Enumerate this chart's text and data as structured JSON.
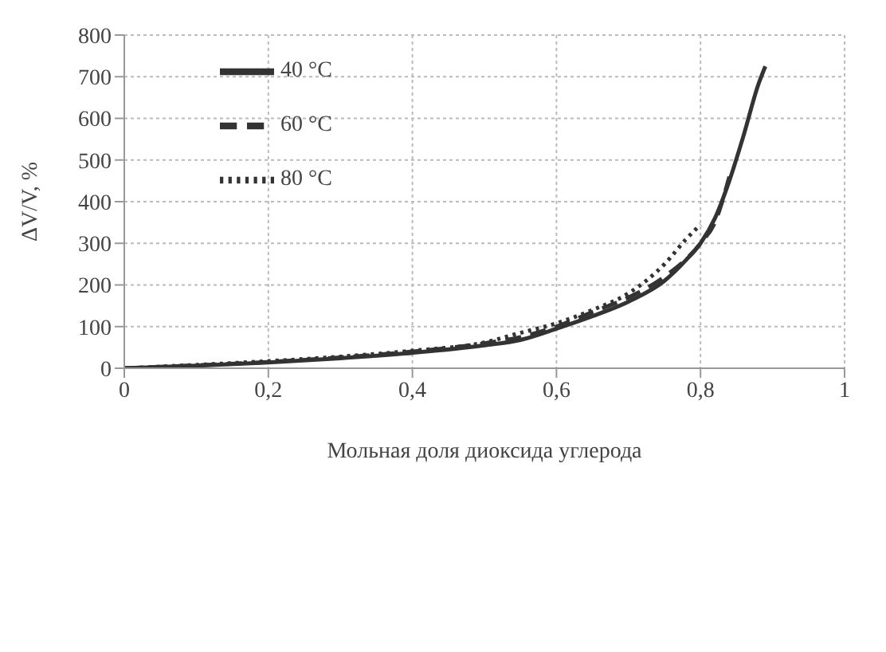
{
  "chart_data": {
    "type": "line",
    "xlabel": "Мольная доля диоксида углерода",
    "ylabel": "ΔV/V, %",
    "xlim": [
      0,
      1
    ],
    "xticks": [
      0,
      {
        "value": 0.2,
        "label": "0,2"
      },
      {
        "value": 0.4,
        "label": "0,4"
      },
      {
        "value": 0.6,
        "label": "0,6"
      },
      {
        "value": 0.8,
        "label": "0,8"
      },
      1
    ],
    "ylim": [
      0,
      800
    ],
    "yticks": [
      0,
      100,
      200,
      300,
      400,
      500,
      600,
      700,
      800
    ],
    "grid": true,
    "legend": "top left",
    "marker": "none",
    "series": [
      {
        "name": "40 °C",
        "color": "#333333",
        "line_style": "solid",
        "x": [
          0,
          0.1,
          0.2,
          0.3,
          0.4,
          0.5,
          0.55,
          0.6,
          0.65,
          0.7,
          0.75,
          0.78,
          0.8,
          0.82,
          0.84,
          0.86,
          0.88,
          0.89
        ],
        "values": [
          0,
          6,
          14,
          24,
          37,
          55,
          68,
          95,
          125,
          160,
          210,
          260,
          300,
          360,
          450,
          560,
          680,
          725
        ]
      },
      {
        "name": "60 °C",
        "color": "#333333",
        "line_style": "dashed",
        "x": [
          0,
          0.1,
          0.2,
          0.3,
          0.4,
          0.5,
          0.55,
          0.6,
          0.65,
          0.7,
          0.75,
          0.8,
          0.82,
          0.84
        ],
        "values": [
          0,
          7,
          15,
          26,
          40,
          60,
          75,
          100,
          135,
          170,
          220,
          300,
          350,
          460
        ]
      },
      {
        "name": "80 °C",
        "color": "#333333",
        "line_style": "dotted",
        "x": [
          0,
          0.1,
          0.2,
          0.3,
          0.4,
          0.5,
          0.55,
          0.6,
          0.65,
          0.7,
          0.75,
          0.78,
          0.8
        ],
        "values": [
          0,
          8,
          17,
          28,
          42,
          62,
          85,
          108,
          140,
          180,
          250,
          310,
          345
        ]
      }
    ]
  }
}
